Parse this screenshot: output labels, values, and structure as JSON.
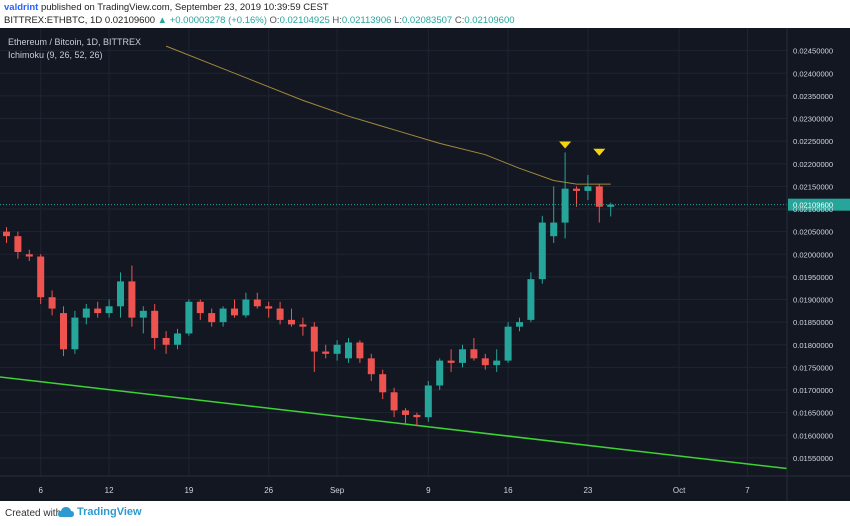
{
  "header": {
    "author": "valdrint",
    "published_text": "published on TradingView.com, September 23, 2019 10:39:59 CEST",
    "symbol": "BITTREX:ETHBTC, 1D",
    "last": "0.02109600",
    "change": "▲ +0.00003278 (+0.16%)",
    "o_label": "O:",
    "o_value": "0.02104925",
    "h_label": "H:",
    "h_value": "0.02113906",
    "l_label": "L:",
    "l_value": "0.02083507",
    "c_label": "C:",
    "c_value": "0.02109600"
  },
  "legend": {
    "line1": "Ethereum / Bitcoin, 1D, BITTREX",
    "line2": "Ichimoku (9, 26, 52, 26)"
  },
  "footer": {
    "created": "Created with",
    "brand": "TradingView"
  },
  "colors": {
    "background": "#131722",
    "grid": "#1f2433",
    "up": "#26a69a",
    "down": "#ef5350",
    "ma": "#a08a3a",
    "trendline": "#3cd433",
    "price_line": "#26a69a",
    "marker": "#f5d50a"
  },
  "chart_data": {
    "type": "candlestick",
    "title": "Ethereum / Bitcoin, 1D, BITTREX",
    "ylim": [
      0.0151,
      0.025
    ],
    "yticks": [
      "0.02450000",
      "0.02400000",
      "0.02350000",
      "0.02300000",
      "0.02250000",
      "0.02200000",
      "0.02150000",
      "0.02100000",
      "0.02050000",
      "0.02000000",
      "0.01950000",
      "0.01900000",
      "0.01850000",
      "0.01800000",
      "0.01750000",
      "0.01700000",
      "0.01650000",
      "0.01600000",
      "0.01550000"
    ],
    "ytick_values": [
      0.0245,
      0.024,
      0.0235,
      0.023,
      0.0225,
      0.022,
      0.0215,
      0.021,
      0.0205,
      0.02,
      0.0195,
      0.019,
      0.0185,
      0.018,
      0.0175,
      0.017,
      0.0165,
      0.016,
      0.0155
    ],
    "xticks": [
      {
        "label": "6",
        "index": 3
      },
      {
        "label": "12",
        "index": 9
      },
      {
        "label": "19",
        "index": 16
      },
      {
        "label": "26",
        "index": 23
      },
      {
        "label": "Sep",
        "index": 29
      },
      {
        "label": "9",
        "index": 37
      },
      {
        "label": "16",
        "index": 44
      },
      {
        "label": "23",
        "index": 51
      },
      {
        "label": "Oct",
        "index": 59
      },
      {
        "label": "7",
        "index": 65
      }
    ],
    "x_count": 75,
    "last_price": 0.021096,
    "last_price_label": "0.02109600",
    "candles": [
      {
        "o": 0.0205,
        "h": 0.0206,
        "l": 0.02025,
        "c": 0.0204
      },
      {
        "o": 0.0204,
        "h": 0.0205,
        "l": 0.0199,
        "c": 0.02005
      },
      {
        "o": 0.02,
        "h": 0.0201,
        "l": 0.01985,
        "c": 0.01995
      },
      {
        "o": 0.01995,
        "h": 0.02,
        "l": 0.0189,
        "c": 0.01905
      },
      {
        "o": 0.01905,
        "h": 0.0192,
        "l": 0.01865,
        "c": 0.0188
      },
      {
        "o": 0.0187,
        "h": 0.01885,
        "l": 0.01775,
        "c": 0.0179
      },
      {
        "o": 0.0179,
        "h": 0.01875,
        "l": 0.0178,
        "c": 0.0186
      },
      {
        "o": 0.0186,
        "h": 0.0189,
        "l": 0.01845,
        "c": 0.0188
      },
      {
        "o": 0.0188,
        "h": 0.01895,
        "l": 0.0186,
        "c": 0.0187
      },
      {
        "o": 0.0187,
        "h": 0.019,
        "l": 0.0186,
        "c": 0.01885
      },
      {
        "o": 0.01885,
        "h": 0.0196,
        "l": 0.0186,
        "c": 0.0194
      },
      {
        "o": 0.0194,
        "h": 0.01975,
        "l": 0.0184,
        "c": 0.0186
      },
      {
        "o": 0.0186,
        "h": 0.01885,
        "l": 0.01825,
        "c": 0.01875
      },
      {
        "o": 0.01875,
        "h": 0.0189,
        "l": 0.0179,
        "c": 0.01815
      },
      {
        "o": 0.01815,
        "h": 0.0183,
        "l": 0.0178,
        "c": 0.018
      },
      {
        "o": 0.018,
        "h": 0.01835,
        "l": 0.0179,
        "c": 0.01825
      },
      {
        "o": 0.01825,
        "h": 0.019,
        "l": 0.0182,
        "c": 0.01895
      },
      {
        "o": 0.01895,
        "h": 0.019,
        "l": 0.01855,
        "c": 0.0187
      },
      {
        "o": 0.0187,
        "h": 0.0188,
        "l": 0.0184,
        "c": 0.0185
      },
      {
        "o": 0.0185,
        "h": 0.01885,
        "l": 0.0184,
        "c": 0.0188
      },
      {
        "o": 0.0188,
        "h": 0.019,
        "l": 0.0186,
        "c": 0.01865
      },
      {
        "o": 0.01865,
        "h": 0.01915,
        "l": 0.0186,
        "c": 0.019
      },
      {
        "o": 0.019,
        "h": 0.01915,
        "l": 0.0188,
        "c": 0.01885
      },
      {
        "o": 0.01885,
        "h": 0.01895,
        "l": 0.0186,
        "c": 0.0188
      },
      {
        "o": 0.0188,
        "h": 0.01895,
        "l": 0.01845,
        "c": 0.01855
      },
      {
        "o": 0.01855,
        "h": 0.0188,
        "l": 0.0184,
        "c": 0.01845
      },
      {
        "o": 0.01845,
        "h": 0.0186,
        "l": 0.0182,
        "c": 0.0184
      },
      {
        "o": 0.0184,
        "h": 0.0185,
        "l": 0.0174,
        "c": 0.01785
      },
      {
        "o": 0.01785,
        "h": 0.018,
        "l": 0.0177,
        "c": 0.0178
      },
      {
        "o": 0.0178,
        "h": 0.0181,
        "l": 0.01765,
        "c": 0.018
      },
      {
        "o": 0.0177,
        "h": 0.01815,
        "l": 0.0176,
        "c": 0.01805
      },
      {
        "o": 0.01805,
        "h": 0.0181,
        "l": 0.0176,
        "c": 0.0177
      },
      {
        "o": 0.0177,
        "h": 0.0178,
        "l": 0.0172,
        "c": 0.01735
      },
      {
        "o": 0.01735,
        "h": 0.01745,
        "l": 0.0168,
        "c": 0.01695
      },
      {
        "o": 0.01695,
        "h": 0.01705,
        "l": 0.0164,
        "c": 0.01655
      },
      {
        "o": 0.01655,
        "h": 0.0166,
        "l": 0.01625,
        "c": 0.01645
      },
      {
        "o": 0.01645,
        "h": 0.0165,
        "l": 0.0162,
        "c": 0.0164
      },
      {
        "o": 0.0164,
        "h": 0.0172,
        "l": 0.0163,
        "c": 0.0171
      },
      {
        "o": 0.0171,
        "h": 0.0177,
        "l": 0.017,
        "c": 0.01765
      },
      {
        "o": 0.01765,
        "h": 0.0179,
        "l": 0.0174,
        "c": 0.0176
      },
      {
        "o": 0.0176,
        "h": 0.018,
        "l": 0.0175,
        "c": 0.0179
      },
      {
        "o": 0.0179,
        "h": 0.01815,
        "l": 0.01765,
        "c": 0.0177
      },
      {
        "o": 0.0177,
        "h": 0.0178,
        "l": 0.01745,
        "c": 0.01755
      },
      {
        "o": 0.01755,
        "h": 0.0179,
        "l": 0.0174,
        "c": 0.01765
      },
      {
        "o": 0.01765,
        "h": 0.0185,
        "l": 0.0176,
        "c": 0.0184
      },
      {
        "o": 0.0184,
        "h": 0.0186,
        "l": 0.0183,
        "c": 0.0185
      },
      {
        "o": 0.01855,
        "h": 0.0196,
        "l": 0.0185,
        "c": 0.01945
      },
      {
        "o": 0.01945,
        "h": 0.02085,
        "l": 0.01935,
        "c": 0.0207
      },
      {
        "o": 0.0204,
        "h": 0.0215,
        "l": 0.02025,
        "c": 0.0207
      },
      {
        "o": 0.0207,
        "h": 0.02225,
        "l": 0.02035,
        "c": 0.02145
      },
      {
        "o": 0.02145,
        "h": 0.0215,
        "l": 0.02105,
        "c": 0.0214
      },
      {
        "o": 0.0214,
        "h": 0.02175,
        "l": 0.0212,
        "c": 0.0215
      },
      {
        "o": 0.0215,
        "h": 0.02155,
        "l": 0.0207,
        "c": 0.02105
      },
      {
        "o": 0.021049,
        "h": 0.021139,
        "l": 0.020835,
        "c": 0.021096
      }
    ],
    "ma_points": [
      [
        14,
        0.0246
      ],
      [
        18,
        0.0242
      ],
      [
        22,
        0.0238
      ],
      [
        26,
        0.0234
      ],
      [
        30,
        0.02305
      ],
      [
        34,
        0.02275
      ],
      [
        38,
        0.02245
      ],
      [
        42,
        0.0222
      ],
      [
        45,
        0.0219
      ],
      [
        48,
        0.02163
      ],
      [
        50,
        0.02155
      ],
      [
        53,
        0.02155
      ]
    ],
    "trendline": {
      "start": [
        -3,
        0.01736
      ],
      "end": [
        70,
        0.01522
      ]
    },
    "markers": [
      {
        "index": 49,
        "price": 0.02238
      },
      {
        "index": 52,
        "price": 0.02222
      }
    ]
  }
}
